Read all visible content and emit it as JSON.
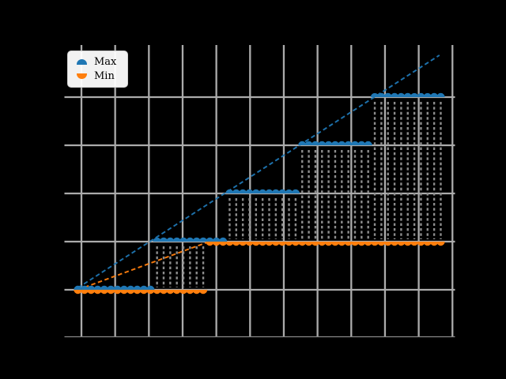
{
  "figure": {
    "background_color": "#000000",
    "grid_color": "#ababab",
    "spine_color": "#888888",
    "connector_color": "#8c8c8c",
    "tick_labels_visible": false,
    "title": ""
  },
  "chart_data": {
    "type": "scatter",
    "title": "",
    "xlabel": "",
    "ylabel": "",
    "x_index_range": [
      0,
      55
    ],
    "n_points": 56,
    "y_level_range": [
      0,
      4
    ],
    "grid": {
      "visible": true,
      "vertical_line_count": 12,
      "horizontal_line_count": 5
    },
    "legend": {
      "position": "upper left",
      "entries": [
        {
          "label": "Max",
          "color": "#1f77b4",
          "marker": "circle-top-half"
        },
        {
          "label": "Min",
          "color": "#ff7f0e",
          "marker": "circle-bottom-half"
        }
      ]
    },
    "series": [
      {
        "name": "Max",
        "color": "#1f77b4",
        "marker": "circle-top-half",
        "level_runs": [
          {
            "from": 0,
            "to": 11,
            "level": 0
          },
          {
            "from": 12,
            "to": 22,
            "level": 1
          },
          {
            "from": 23,
            "to": 33,
            "level": 2
          },
          {
            "from": 34,
            "to": 44,
            "level": 3
          },
          {
            "from": 45,
            "to": 55,
            "level": 4
          }
        ]
      },
      {
        "name": "Min",
        "color": "#ff7f0e",
        "marker": "circle-bottom-half",
        "level_runs": [
          {
            "from": 0,
            "to": 19,
            "level": 0
          },
          {
            "from": 20,
            "to": 55,
            "level": 1
          }
        ]
      }
    ],
    "trend_lines": [
      {
        "series": "Max",
        "style": "dashed",
        "color": "#1f77b4",
        "from_point": [
          0,
          0.04
        ],
        "to_point": [
          54.8,
          4.87
        ]
      },
      {
        "series": "Min",
        "style": "dashed",
        "color": "#ff7f0e",
        "from_point": [
          0,
          0.0
        ],
        "to_point": [
          19.7,
          0.99
        ]
      }
    ],
    "connectors": {
      "style": "dashed",
      "color": "#8c8c8c",
      "rule": "vertical dashed line at each x where Max level differs from Min level"
    }
  }
}
